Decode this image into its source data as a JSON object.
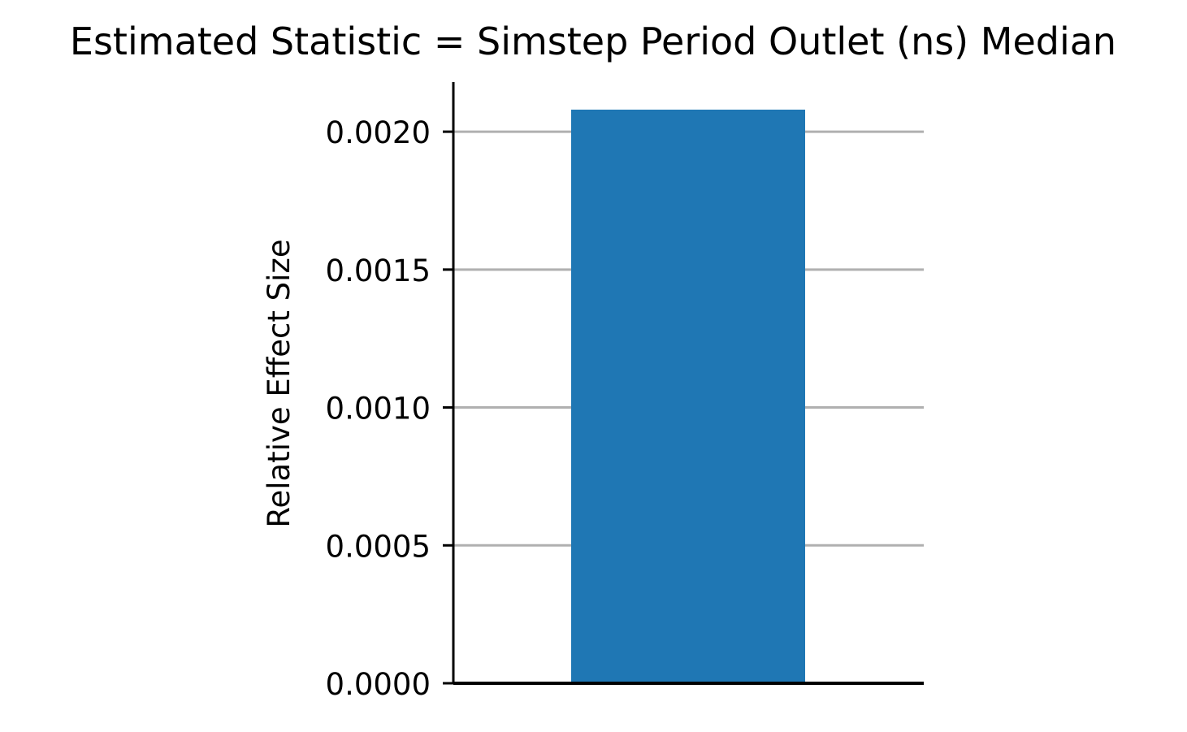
{
  "chart_data": {
    "type": "bar",
    "title": "Estimated Statistic = Simstep Period Outlet (ns) Median",
    "xlabel": "",
    "ylabel": "Relative Effect Size",
    "categories": [
      ""
    ],
    "values": [
      0.00208
    ],
    "ylim": [
      0,
      0.00218
    ],
    "yticks": [
      0.0,
      0.0005,
      0.001,
      0.0015,
      0.002
    ],
    "ytick_labels": [
      "0.0000",
      "0.0005",
      "0.0010",
      "0.0015",
      "0.0020"
    ],
    "grid": "horizontal",
    "legend": "none",
    "colors": {
      "bar": "#1f77b4",
      "grid": "#b0b0b0",
      "axis": "#000000"
    }
  }
}
